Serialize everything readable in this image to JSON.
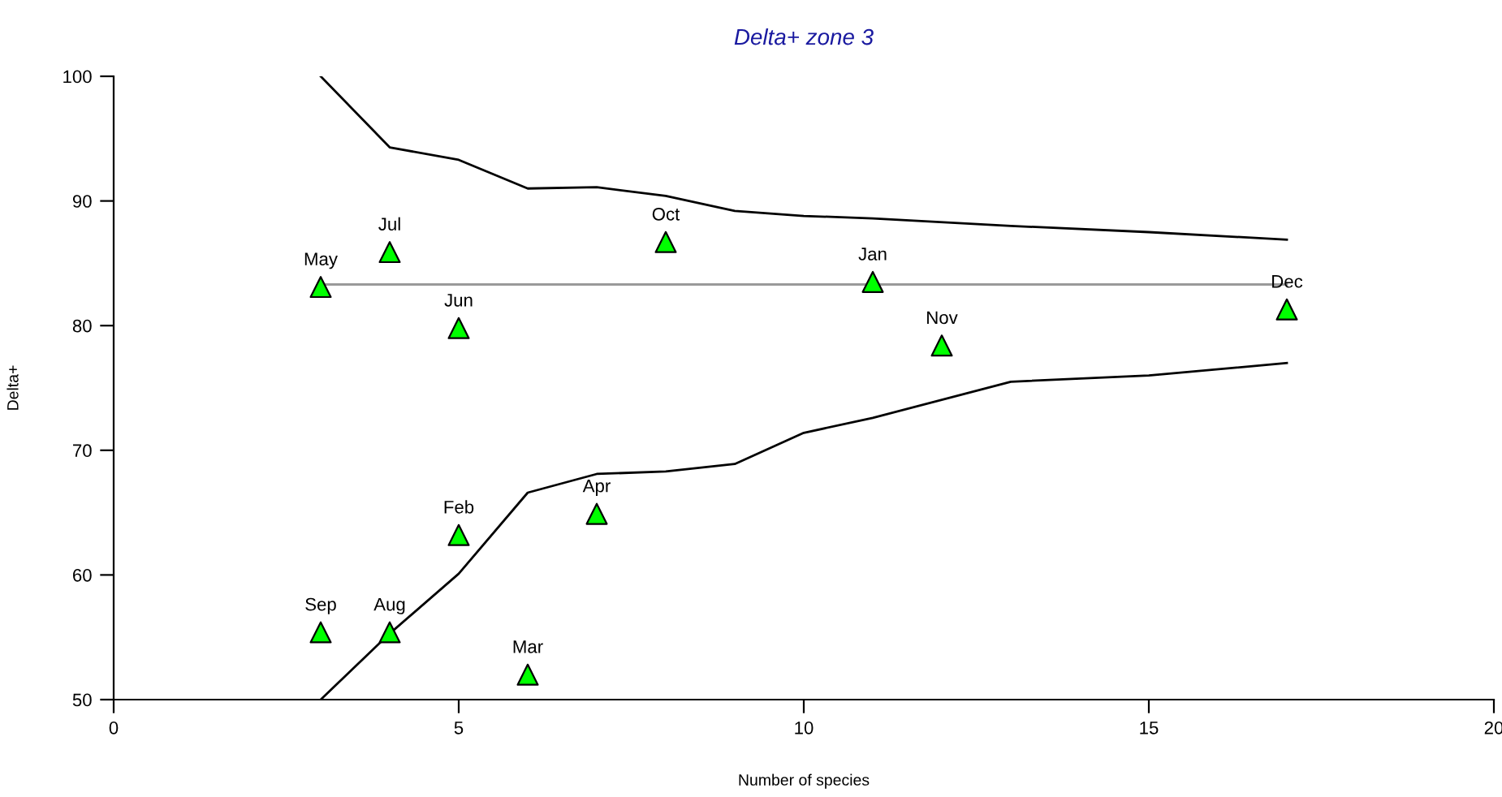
{
  "chart_data": {
    "type": "scatter",
    "title": "Delta+ zone 3",
    "xlabel": "Number of species",
    "ylabel": "Delta+",
    "xlim": [
      0,
      20
    ],
    "xticks": [
      0,
      5,
      10,
      15,
      20
    ],
    "ylim": [
      50,
      100
    ],
    "yticks": [
      50,
      60,
      70,
      80,
      90,
      100
    ],
    "grid": false,
    "legend": false,
    "series": [
      {
        "type": "line",
        "color": "#000000",
        "x": [
          3,
          4,
          5,
          6,
          7,
          8,
          9,
          10,
          11,
          13,
          15,
          17
        ],
        "values": [
          100,
          94.3,
          93.3,
          91.0,
          91.1,
          90.4,
          89.2,
          88.8,
          88.6,
          88.0,
          87.5,
          86.9
        ],
        "marker": "none"
      },
      {
        "type": "line",
        "color": "#000000",
        "x": [
          3,
          4,
          5,
          6,
          7,
          8,
          9,
          10,
          11,
          13,
          15,
          17
        ],
        "values": [
          50,
          55.3,
          60.1,
          66.6,
          68.1,
          68.3,
          68.9,
          71.4,
          72.6,
          75.5,
          76.0,
          77.0
        ],
        "marker": "none"
      },
      {
        "type": "line",
        "color": "#999999",
        "x": [
          3,
          17
        ],
        "values": [
          83.3,
          83.3
        ],
        "marker": "none"
      },
      {
        "color": "#00ff00",
        "marker": "triangle",
        "x": [
          3,
          4,
          5,
          8,
          11,
          12,
          17,
          5,
          7,
          3,
          4,
          6
        ],
        "values": [
          83.1,
          85.9,
          79.8,
          86.7,
          83.5,
          78.4,
          81.3,
          63.2,
          64.9,
          55.4,
          55.4,
          52.0
        ]
      }
    ],
    "annotations": [
      {
        "text": "May",
        "x": 3,
        "y": 83.1
      },
      {
        "text": "Jul",
        "x": 4,
        "y": 85.9
      },
      {
        "text": "Jun",
        "x": 5,
        "y": 79.8
      },
      {
        "text": "Oct",
        "x": 8,
        "y": 86.7
      },
      {
        "text": "Jan",
        "x": 11,
        "y": 83.5
      },
      {
        "text": "Nov",
        "x": 12,
        "y": 78.4
      },
      {
        "text": "Dec",
        "x": 17,
        "y": 81.3
      },
      {
        "text": "Feb",
        "x": 5,
        "y": 63.2
      },
      {
        "text": "Apr",
        "x": 7,
        "y": 64.9
      },
      {
        "text": "Sep",
        "x": 3,
        "y": 55.4
      },
      {
        "text": "Aug",
        "x": 4,
        "y": 55.4
      },
      {
        "text": "Mar",
        "x": 6,
        "y": 52.0
      }
    ]
  }
}
